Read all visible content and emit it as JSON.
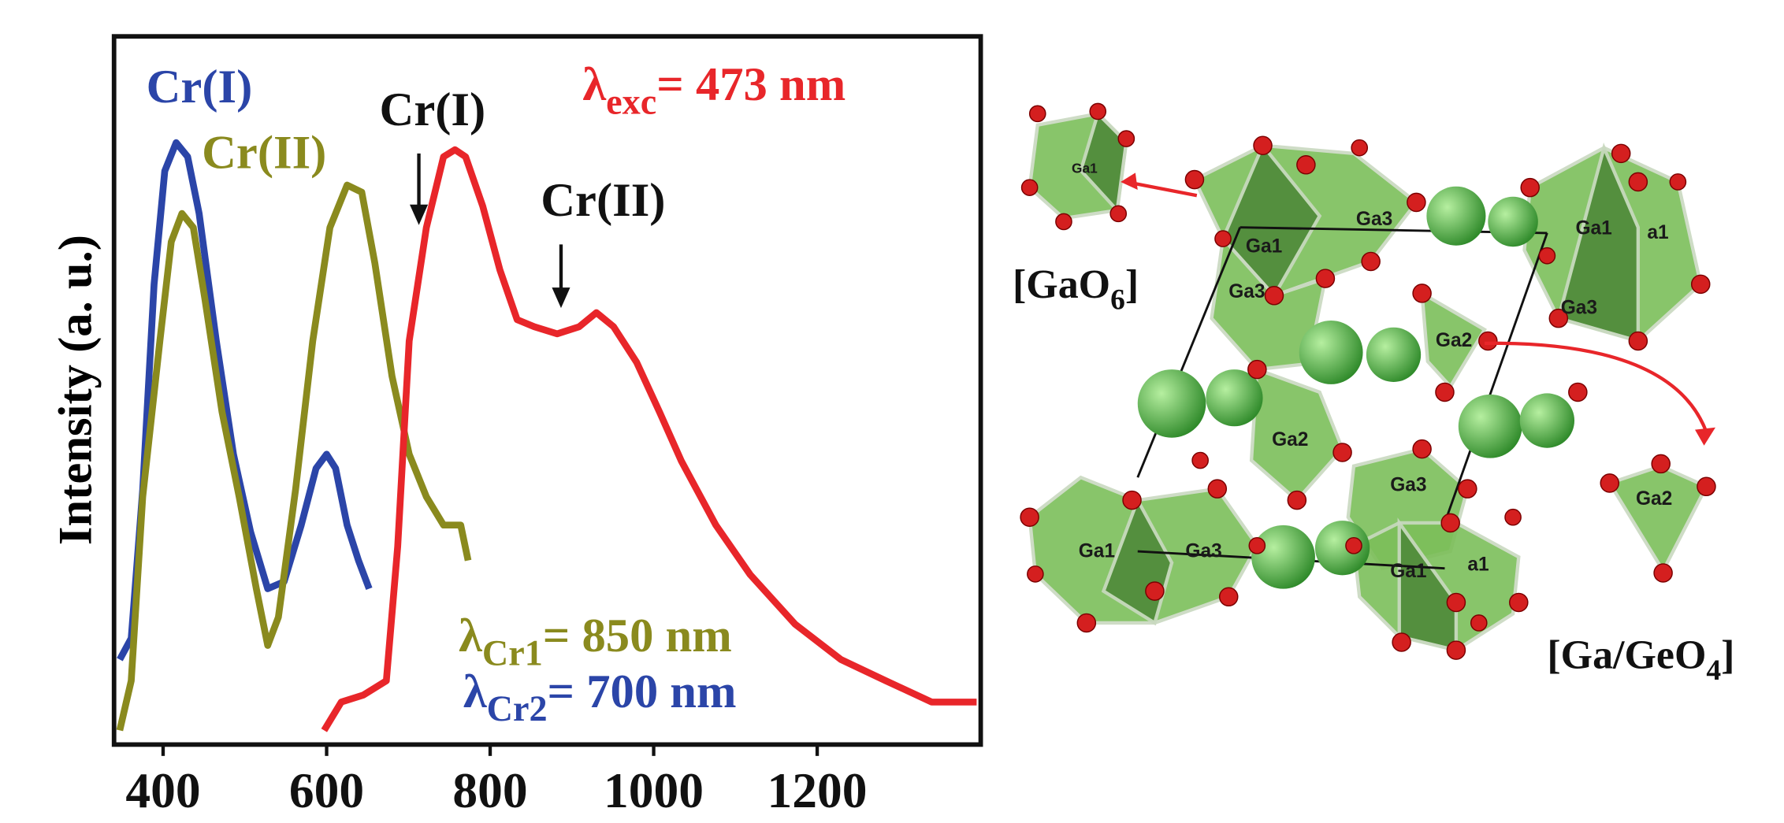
{
  "chart_data": {
    "type": "line",
    "ylabel": "Intensity (a. u.)",
    "xlim": [
      340,
      1400
    ],
    "xticks": [
      400,
      600,
      800,
      1000,
      1200
    ],
    "ylim": [
      0,
      1
    ],
    "series": [
      {
        "color": "#2b45a8",
        "x": [
          347,
          361,
          375,
          389,
          402,
          416,
          430,
          444,
          465,
          486,
          507,
          528,
          548,
          569,
          587,
          600,
          611,
          625,
          639,
          652
        ],
        "values": [
          0.12,
          0.15,
          0.36,
          0.65,
          0.81,
          0.85,
          0.83,
          0.75,
          0.57,
          0.41,
          0.3,
          0.22,
          0.23,
          0.31,
          0.39,
          0.41,
          0.39,
          0.31,
          0.26,
          0.22
        ]
      },
      {
        "color": "#8a8a1e",
        "x": [
          347,
          361,
          375,
          396,
          410,
          423,
          437,
          451,
          472,
          493,
          514,
          528,
          541,
          562,
          583,
          604,
          625,
          643,
          659,
          680,
          701,
          722,
          743,
          764,
          773
        ],
        "values": [
          0.02,
          0.09,
          0.35,
          0.57,
          0.71,
          0.75,
          0.73,
          0.63,
          0.47,
          0.35,
          0.22,
          0.14,
          0.18,
          0.36,
          0.57,
          0.73,
          0.79,
          0.78,
          0.68,
          0.52,
          0.41,
          0.35,
          0.31,
          0.31,
          0.26
        ]
      },
      {
        "color": "#e8262a",
        "x": [
          597,
          618,
          645,
          673,
          687,
          701,
          722,
          743,
          757,
          770,
          791,
          812,
          833,
          854,
          882,
          909,
          930,
          951,
          979,
          1007,
          1034,
          1076,
          1118,
          1173,
          1229,
          1284,
          1340,
          1395
        ],
        "values": [
          0.02,
          0.06,
          0.07,
          0.09,
          0.28,
          0.57,
          0.73,
          0.83,
          0.84,
          0.83,
          0.76,
          0.67,
          0.6,
          0.59,
          0.58,
          0.59,
          0.61,
          0.59,
          0.54,
          0.47,
          0.4,
          0.31,
          0.24,
          0.17,
          0.12,
          0.09,
          0.06,
          0.06
        ]
      }
    ],
    "annotations": [
      {
        "text": "Cr(I)"
      },
      {
        "text": "Cr(II)"
      },
      {
        "text": "Cr(I)"
      },
      {
        "text": "Cr(II)"
      },
      {
        "symbol": "λ",
        "subscript": "exc",
        "text": "= 473 nm"
      },
      {
        "symbol": "λ",
        "subscript": "Cr1",
        "text": "= 850 nm"
      },
      {
        "symbol": "λ",
        "subscript": "Cr2",
        "text": "= 700 nm"
      }
    ]
  },
  "structure": {
    "site_labels": [
      "Ga1",
      "Ga1",
      "Ga3",
      "Ga3",
      "Ga1",
      "a1",
      "Ga2",
      "Ga3",
      "Ga2",
      "Ga3",
      "Ga1",
      "Ga3",
      "Ga1",
      "a1",
      "Ga2"
    ],
    "captions": [
      {
        "text": "[GaO",
        "subscript": "6",
        "end": "]"
      },
      {
        "text": "[Ga/GeO",
        "subscript": "4",
        "end": "]"
      }
    ]
  }
}
